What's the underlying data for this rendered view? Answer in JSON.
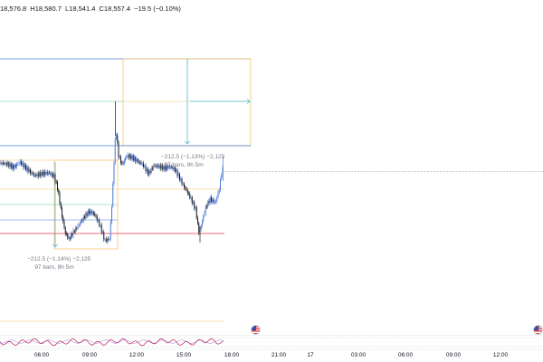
{
  "ohlc": {
    "open": "18,576.8",
    "high": "H18,580.7",
    "low": "L18,541.4",
    "close": "C18,557.4",
    "change": "−19.5 (−0.10%)"
  },
  "measures": [
    {
      "line1": "−212.5 (−1.14%) −2,125",
      "line2": "97 bars, 8h 5m"
    },
    {
      "line1": "−212.5 (−1.13%) −2,125",
      "line2": "97 bars, 8h 5m"
    }
  ],
  "time_axis": [
    "06:00",
    "09:00",
    "12:00",
    "15:00",
    "18:00",
    "21:00",
    "17",
    "03:00",
    "06:00",
    "09:00",
    "12:00"
  ],
  "colors": {
    "up": "#4c7ddb",
    "down": "#131722",
    "target_box": "#f7c56b",
    "stop_box": "#f7c56b",
    "arrow": "#4fb8d8",
    "stop_line": "#f23645",
    "crosshair": "#9598a1"
  },
  "icons": {
    "economic_event": "us-flag-icon"
  }
}
